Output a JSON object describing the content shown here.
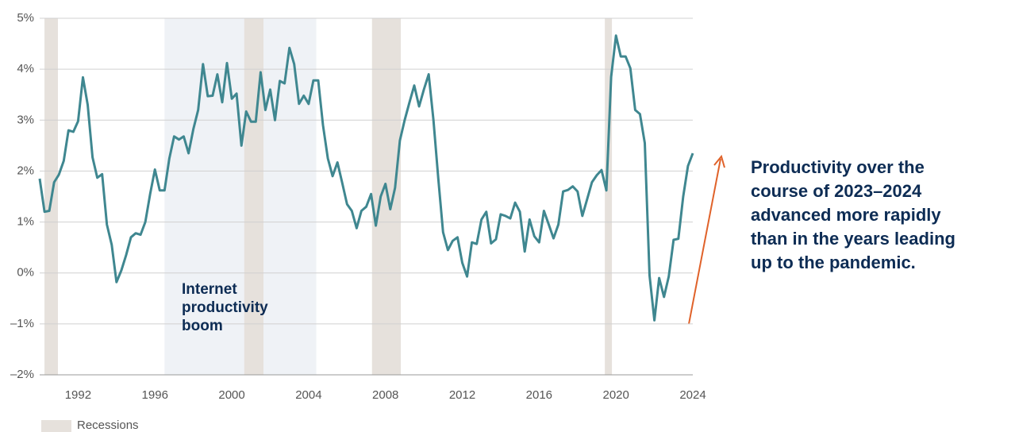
{
  "chart_data": {
    "type": "line",
    "x": [
      1990,
      1990.25,
      1990.5,
      1990.75,
      1991,
      1991.25,
      1991.5,
      1991.75,
      1992,
      1992.25,
      1992.5,
      1992.75,
      1993,
      1993.25,
      1993.5,
      1993.75,
      1994,
      1994.25,
      1994.5,
      1994.75,
      1995,
      1995.25,
      1995.5,
      1995.75,
      1996,
      1996.25,
      1996.5,
      1996.75,
      1997,
      1997.25,
      1997.5,
      1997.75,
      1998,
      1998.25,
      1998.5,
      1998.75,
      1999,
      1999.25,
      1999.5,
      1999.75,
      2000,
      2000.25,
      2000.5,
      2000.75,
      2001,
      2001.25,
      2001.5,
      2001.75,
      2002,
      2002.25,
      2002.5,
      2002.75,
      2003,
      2003.25,
      2003.5,
      2003.75,
      2004,
      2004.25,
      2004.5,
      2004.75,
      2005,
      2005.25,
      2005.5,
      2005.75,
      2006,
      2006.25,
      2006.5,
      2006.75,
      2007,
      2007.25,
      2007.5,
      2007.75,
      2008,
      2008.25,
      2008.5,
      2008.75,
      2009,
      2009.25,
      2009.5,
      2009.75,
      2010,
      2010.25,
      2010.5,
      2010.75,
      2011,
      2011.25,
      2011.5,
      2011.75,
      2012,
      2012.25,
      2012.5,
      2012.75,
      2013,
      2013.25,
      2013.5,
      2013.75,
      2014,
      2014.25,
      2014.5,
      2014.75,
      2015,
      2015.25,
      2015.5,
      2015.75,
      2016,
      2016.25,
      2016.5,
      2016.75,
      2017,
      2017.25,
      2017.5,
      2017.75,
      2018,
      2018.25,
      2018.5,
      2018.75,
      2019,
      2019.25,
      2019.5,
      2019.75,
      2020,
      2020.25,
      2020.5,
      2020.75,
      2021,
      2021.25,
      2021.5,
      2021.75,
      2022,
      2022.25,
      2022.5,
      2022.75,
      2023,
      2023.25,
      2023.5,
      2023.75,
      2024
    ],
    "series": [
      {
        "color": "#3f8790",
        "values": [
          1.85,
          1.2,
          1.22,
          1.78,
          1.93,
          2.2,
          2.8,
          2.77,
          2.98,
          3.84,
          3.3,
          2.27,
          1.87,
          1.94,
          0.95,
          0.55,
          -0.18,
          0.05,
          0.35,
          0.7,
          0.78,
          0.75,
          1.0,
          1.55,
          2.03,
          1.62,
          1.62,
          2.25,
          2.68,
          2.62,
          2.68,
          2.35,
          2.82,
          3.2,
          4.1,
          3.47,
          3.48,
          3.9,
          3.35,
          4.12,
          3.42,
          3.52,
          2.5,
          3.17,
          2.97,
          2.97,
          3.94,
          3.2,
          3.6,
          3.0,
          3.77,
          3.72,
          4.42,
          4.1,
          3.32,
          3.48,
          3.32,
          3.78,
          3.78,
          2.9,
          2.25,
          1.9,
          2.17,
          1.77,
          1.35,
          1.22,
          0.88,
          1.22,
          1.3,
          1.55,
          0.93,
          1.5,
          1.75,
          1.25,
          1.67,
          2.6,
          3.0,
          3.35,
          3.68,
          3.27,
          3.6,
          3.9,
          3.0,
          1.85,
          0.8,
          0.45,
          0.63,
          0.7,
          0.2,
          -0.07,
          0.6,
          0.57,
          1.05,
          1.2,
          0.58,
          0.66,
          1.15,
          1.12,
          1.07,
          1.38,
          1.2,
          0.42,
          1.05,
          0.72,
          0.6,
          1.22,
          0.95,
          0.68,
          0.95,
          1.6,
          1.63,
          1.7,
          1.6,
          1.12,
          1.45,
          1.78,
          1.92,
          2.02,
          1.62,
          3.85,
          4.66,
          4.25,
          4.25,
          4.02,
          3.2,
          3.12,
          2.55,
          -0.05,
          -0.93,
          -0.1,
          -0.47,
          -0.07,
          0.65,
          0.67,
          1.5,
          2.1,
          2.35
        ]
      }
    ],
    "xlim": [
      1990,
      2024
    ],
    "xticks": [
      1992,
      1996,
      2000,
      2004,
      2008,
      2012,
      2016,
      2020,
      2024
    ],
    "ylim": [
      -2,
      5
    ],
    "yticks": [
      {
        "value": -2,
        "label": "–2%"
      },
      {
        "value": -1,
        "label": "–1%"
      },
      {
        "value": 0,
        "label": "0%"
      },
      {
        "value": 1,
        "label": "1%"
      },
      {
        "value": 2,
        "label": "2%"
      },
      {
        "value": 3,
        "label": "3%"
      },
      {
        "value": 4,
        "label": "4%"
      },
      {
        "value": 5,
        "label": "5%"
      }
    ],
    "grid": true,
    "recessions": [
      [
        1990.25,
        1990.95
      ],
      [
        2000.65,
        2001.65
      ],
      [
        2007.3,
        2008.8
      ],
      [
        2019.42,
        2019.79
      ]
    ],
    "recession_color": "#e6e1dc",
    "legend_label": "Recessions",
    "highlight": {
      "range": [
        1996.5,
        2004.4
      ],
      "color": "#eff2f6",
      "label": [
        "Internet",
        "productivity",
        "boom"
      ]
    },
    "annotation": [
      "Productivity over the",
      "course of 2023–2024",
      "advanced more rapidly",
      "than in the years leading",
      "up to the pandemic."
    ]
  }
}
